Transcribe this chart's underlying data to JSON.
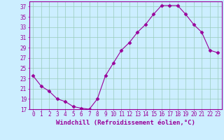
{
  "x": [
    0,
    1,
    2,
    3,
    4,
    5,
    6,
    7,
    8,
    9,
    10,
    11,
    12,
    13,
    14,
    15,
    16,
    17,
    18,
    19,
    20,
    21,
    22,
    23
  ],
  "y": [
    23.5,
    21.5,
    20.5,
    19.0,
    18.5,
    17.5,
    17.2,
    17.0,
    19.0,
    23.5,
    26.0,
    28.5,
    30.0,
    32.0,
    33.5,
    35.5,
    37.2,
    37.2,
    37.2,
    35.5,
    33.5,
    32.0,
    28.5,
    28.0
  ],
  "xlabel": "Windchill (Refroidissement éolien,°C)",
  "ylim": [
    17,
    38
  ],
  "xlim": [
    -0.5,
    23.5
  ],
  "yticks": [
    17,
    19,
    21,
    23,
    25,
    27,
    29,
    31,
    33,
    35,
    37
  ],
  "xticks": [
    0,
    1,
    2,
    3,
    4,
    5,
    6,
    7,
    8,
    9,
    10,
    11,
    12,
    13,
    14,
    15,
    16,
    17,
    18,
    19,
    20,
    21,
    22,
    23
  ],
  "line_color": "#990099",
  "marker": "D",
  "marker_size": 2.5,
  "bg_color": "#cceeff",
  "grid_color": "#99ccbb",
  "label_color": "#990099",
  "tick_color": "#990099",
  "spine_color": "#990099",
  "xlabel_fontsize": 6.5,
  "tick_fontsize": 5.5
}
